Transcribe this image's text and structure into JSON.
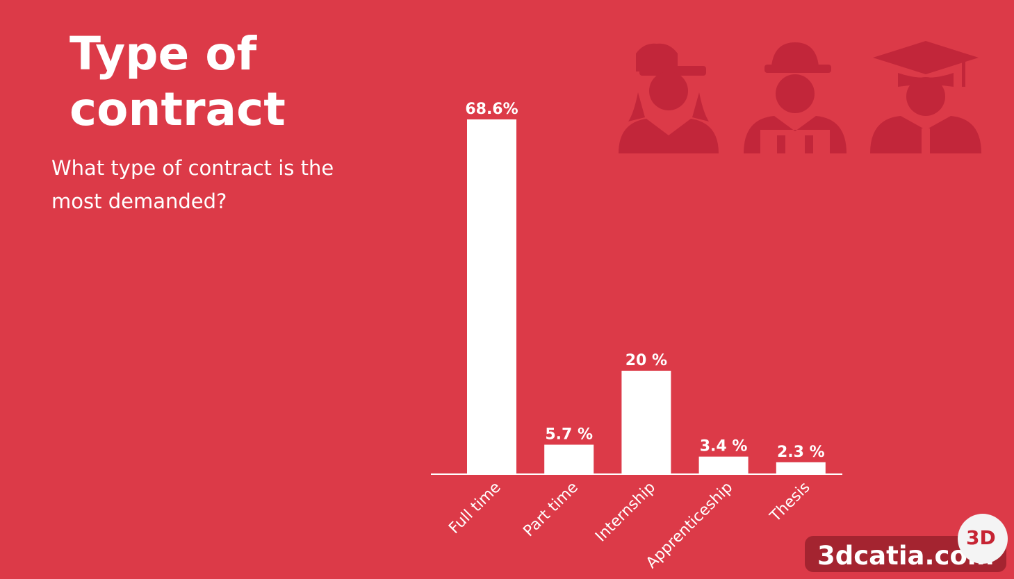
{
  "slide": {
    "title_line1": "Type of",
    "title_line2": "contract",
    "subtitle": "What type of contract is the most demanded?"
  },
  "chart_data": {
    "type": "bar",
    "categories": [
      "Full time",
      "Part time",
      "Internship",
      "Apprenticeship",
      "Thesis"
    ],
    "values": [
      68.6,
      5.7,
      20,
      3.4,
      2.3
    ],
    "data_labels": [
      "68.6%",
      "5.7 %",
      "20 %",
      "3.4 %",
      "2.3 %"
    ],
    "unit": "%",
    "ylim": [
      0,
      68.6
    ],
    "grid": false,
    "legend": "none",
    "bar_color": "#ffffff",
    "background_color": "#dc3a48"
  },
  "icons": [
    "female-worker-icon",
    "construction-worker-icon",
    "graduate-icon"
  ],
  "icon_color": "#c2263a",
  "watermark": {
    "text": "3dcatia.com",
    "logo": "3D"
  }
}
